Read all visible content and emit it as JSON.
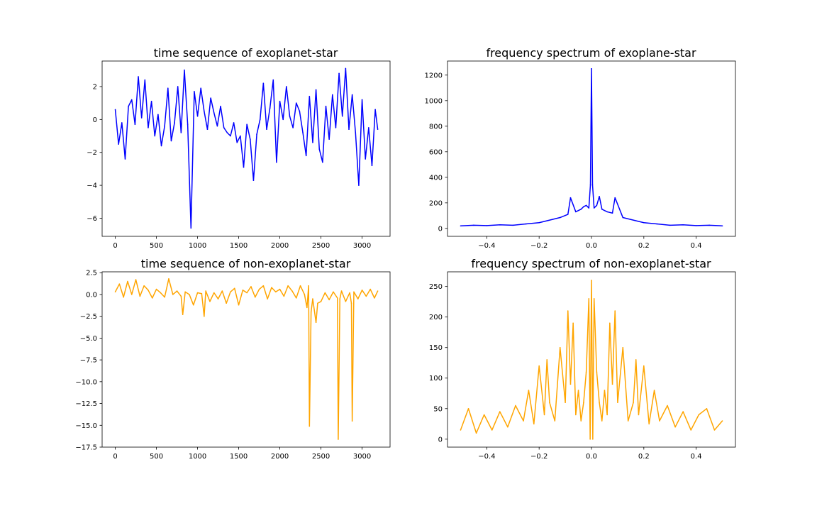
{
  "chart_data": [
    {
      "type": "line",
      "title": "time sequence of exoplanet-star",
      "xlabel": "",
      "ylabel": "",
      "xlim": [
        -160,
        3340
      ],
      "ylim": [
        -7.1,
        3.55
      ],
      "xticks": [
        0,
        500,
        1000,
        1500,
        2000,
        2500,
        3000
      ],
      "xtick_labels": [
        "0",
        "500",
        "1000",
        "1500",
        "2000",
        "2500",
        "3000"
      ],
      "yticks": [
        2,
        0,
        -2,
        -4,
        -6
      ],
      "ytick_labels": [
        "2",
        "0",
        "−2",
        "−4",
        "−6"
      ],
      "grid": false,
      "series": [
        {
          "color": "#0000ff",
          "x": [
            0,
            40,
            80,
            120,
            160,
            200,
            240,
            280,
            320,
            360,
            400,
            440,
            480,
            520,
            560,
            600,
            640,
            680,
            720,
            760,
            800,
            840,
            880,
            920,
            960,
            1000,
            1040,
            1080,
            1120,
            1160,
            1200,
            1240,
            1280,
            1320,
            1360,
            1400,
            1440,
            1480,
            1520,
            1560,
            1600,
            1640,
            1680,
            1720,
            1760,
            1800,
            1840,
            1880,
            1920,
            1960,
            2000,
            2040,
            2080,
            2120,
            2160,
            2200,
            2240,
            2280,
            2320,
            2360,
            2400,
            2440,
            2480,
            2520,
            2560,
            2600,
            2640,
            2680,
            2720,
            2760,
            2800,
            2840,
            2880,
            2920,
            2960,
            3000,
            3040,
            3080,
            3120,
            3160,
            3190
          ],
          "y": [
            0.6,
            -1.5,
            -0.2,
            -2.4,
            0.8,
            1.2,
            -0.3,
            2.6,
            0.1,
            2.4,
            -0.5,
            1.1,
            -1.0,
            0.3,
            -1.6,
            -0.4,
            1.9,
            -1.3,
            -0.2,
            2.0,
            -0.8,
            3.0,
            -0.3,
            -6.6,
            1.7,
            0.2,
            1.9,
            0.5,
            -0.6,
            1.3,
            0.4,
            -0.4,
            0.8,
            -0.5,
            -0.8,
            -1.0,
            -0.2,
            -1.4,
            -1.0,
            -2.9,
            -0.3,
            -1.2,
            -3.7,
            -0.9,
            0.0,
            2.2,
            -0.6,
            0.7,
            2.4,
            -2.6,
            1.1,
            0.0,
            2.0,
            0.2,
            -0.5,
            1.0,
            0.5,
            -0.8,
            -2.2,
            1.4,
            -1.4,
            1.8,
            -1.8,
            -2.6,
            0.8,
            -1.2,
            1.5,
            -0.5,
            2.8,
            0.2,
            3.1,
            -0.6,
            1.5,
            -0.8,
            -4.0,
            1.2,
            -2.4,
            -0.5,
            -2.8,
            0.6,
            -0.6
          ]
        }
      ]
    },
    {
      "type": "line",
      "title": "frequency spectrum of exoplane-star",
      "xlabel": "",
      "ylabel": "",
      "xlim": [
        -0.55,
        0.55
      ],
      "ylim": [
        -62,
        1310
      ],
      "xticks": [
        -0.4,
        -0.2,
        0.0,
        0.2,
        0.4
      ],
      "xtick_labels": [
        "−0.4",
        "−0.2",
        "0.0",
        "0.2",
        "0.4"
      ],
      "yticks": [
        0,
        200,
        400,
        600,
        800,
        1000,
        1200
      ],
      "ytick_labels": [
        "0",
        "200",
        "400",
        "600",
        "800",
        "1000",
        "1200"
      ],
      "grid": false,
      "series": [
        {
          "color": "#0000ff",
          "x": [
            -0.5,
            -0.45,
            -0.4,
            -0.35,
            -0.3,
            -0.25,
            -0.2,
            -0.15,
            -0.12,
            -0.09,
            -0.08,
            -0.06,
            -0.04,
            -0.03,
            -0.02,
            -0.01,
            -0.004,
            0.0,
            0.004,
            0.01,
            0.02,
            0.03,
            0.04,
            0.06,
            0.08,
            0.09,
            0.12,
            0.15,
            0.2,
            0.25,
            0.3,
            0.35,
            0.4,
            0.45,
            0.5
          ],
          "y": [
            20,
            25,
            22,
            28,
            25,
            35,
            45,
            70,
            85,
            110,
            240,
            130,
            150,
            170,
            180,
            160,
            340,
            1250,
            340,
            160,
            180,
            250,
            150,
            130,
            120,
            240,
            85,
            70,
            45,
            35,
            25,
            28,
            22,
            25,
            20
          ]
        }
      ]
    },
    {
      "type": "line",
      "title": "time sequence of non-exoplanet-star",
      "xlabel": "",
      "ylabel": "",
      "xlim": [
        -160,
        3340
      ],
      "ylim": [
        -17.5,
        2.6
      ],
      "xticks": [
        0,
        500,
        1000,
        1500,
        2000,
        2500,
        3000
      ],
      "xtick_labels": [
        "0",
        "500",
        "1000",
        "1500",
        "2000",
        "2500",
        "3000"
      ],
      "yticks": [
        2.5,
        0.0,
        -2.5,
        -5.0,
        -7.5,
        -10.0,
        -12.5,
        -15.0,
        -17.5
      ],
      "ytick_labels": [
        "2.5",
        "0.0",
        "−2.5",
        "−5.0",
        "−7.5",
        "−10.0",
        "−12.5",
        "−15.0",
        "−17.5"
      ],
      "grid": false,
      "series": [
        {
          "color": "#ffa500",
          "x": [
            0,
            50,
            100,
            150,
            200,
            250,
            300,
            350,
            400,
            450,
            500,
            550,
            600,
            650,
            700,
            750,
            800,
            820,
            850,
            900,
            950,
            1000,
            1050,
            1080,
            1100,
            1150,
            1200,
            1250,
            1300,
            1350,
            1400,
            1450,
            1500,
            1550,
            1600,
            1650,
            1700,
            1750,
            1800,
            1850,
            1900,
            1950,
            2000,
            2050,
            2100,
            2150,
            2200,
            2250,
            2300,
            2330,
            2350,
            2360,
            2380,
            2400,
            2440,
            2460,
            2500,
            2550,
            2600,
            2650,
            2700,
            2710,
            2730,
            2750,
            2800,
            2850,
            2870,
            2880,
            2900,
            2950,
            3000,
            3050,
            3100,
            3150,
            3190
          ],
          "y": [
            0.3,
            1.2,
            -0.3,
            1.5,
            0.0,
            1.7,
            -0.2,
            1.0,
            0.5,
            -0.4,
            0.6,
            0.2,
            -0.3,
            1.8,
            0.0,
            0.4,
            -0.2,
            -2.3,
            0.3,
            0.0,
            -1.2,
            0.2,
            0.1,
            -2.5,
            0.4,
            -0.8,
            0.2,
            -0.5,
            0.4,
            -1.0,
            0.3,
            0.7,
            -1.2,
            0.5,
            0.2,
            0.9,
            -0.3,
            0.6,
            1.0,
            -0.5,
            0.8,
            0.3,
            0.6,
            -0.2,
            1.0,
            0.4,
            -0.4,
            1.0,
            0.0,
            -1.5,
            1.0,
            -15.1,
            -2.0,
            -0.5,
            -3.2,
            -1.0,
            -0.8,
            0.2,
            -0.6,
            0.3,
            -0.4,
            -16.6,
            -0.5,
            0.4,
            -0.8,
            0.2,
            -1.0,
            -14.5,
            0.3,
            -0.5,
            0.5,
            -0.2,
            0.6,
            -0.4,
            0.4
          ]
        }
      ]
    },
    {
      "type": "line",
      "title": "frequency spectrum of non-exoplanet-star",
      "xlabel": "",
      "ylabel": "",
      "xlim": [
        -0.55,
        0.55
      ],
      "ylim": [
        -13,
        274
      ],
      "xticks": [
        -0.4,
        -0.2,
        0.0,
        0.2,
        0.4
      ],
      "xtick_labels": [
        "−0.4",
        "−0.2",
        "0.0",
        "0.2",
        "0.4"
      ],
      "yticks": [
        0,
        50,
        100,
        150,
        200,
        250
      ],
      "ytick_labels": [
        "0",
        "50",
        "100",
        "150",
        "200",
        "250"
      ],
      "grid": false,
      "series": [
        {
          "color": "#ffa500",
          "x": [
            -0.5,
            -0.47,
            -0.44,
            -0.41,
            -0.38,
            -0.35,
            -0.32,
            -0.29,
            -0.26,
            -0.24,
            -0.22,
            -0.2,
            -0.18,
            -0.17,
            -0.16,
            -0.14,
            -0.12,
            -0.1,
            -0.09,
            -0.08,
            -0.07,
            -0.06,
            -0.05,
            -0.04,
            -0.03,
            -0.02,
            -0.01,
            -0.005,
            0.0,
            0.005,
            0.01,
            0.02,
            0.03,
            0.04,
            0.05,
            0.06,
            0.07,
            0.08,
            0.09,
            0.1,
            0.12,
            0.14,
            0.16,
            0.17,
            0.18,
            0.2,
            0.22,
            0.24,
            0.26,
            0.29,
            0.32,
            0.35,
            0.38,
            0.41,
            0.44,
            0.47,
            0.5
          ],
          "y": [
            15,
            50,
            10,
            40,
            15,
            45,
            20,
            55,
            30,
            80,
            25,
            120,
            40,
            130,
            60,
            30,
            150,
            60,
            210,
            90,
            190,
            40,
            80,
            30,
            60,
            110,
            230,
            0,
            260,
            0,
            230,
            110,
            60,
            30,
            80,
            40,
            190,
            90,
            210,
            60,
            150,
            30,
            60,
            130,
            40,
            120,
            25,
            80,
            30,
            55,
            20,
            45,
            15,
            40,
            50,
            15,
            30
          ]
        }
      ]
    }
  ]
}
